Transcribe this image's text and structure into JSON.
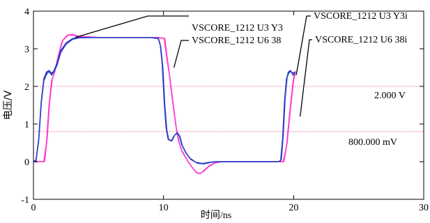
{
  "chart_data": {
    "type": "line",
    "xlabel": "时间/ns",
    "ylabel": "电压/V",
    "xlim": [
      0,
      30
    ],
    "ylim": [
      -1,
      4
    ],
    "x_ticks": [
      0,
      10,
      20,
      30
    ],
    "y_ticks": [
      -1,
      0,
      1,
      2,
      3,
      4
    ],
    "x_tick_labels": [
      "0",
      "10",
      "20",
      "30"
    ],
    "y_tick_labels": [
      "-1",
      "0",
      "1",
      "2",
      "3",
      "4"
    ],
    "grid": false,
    "reference_lines": [
      {
        "y": 2.0,
        "label": "2.000 V",
        "color": "#ff6fa3"
      },
      {
        "y": 0.8,
        "label": "800.000 mV",
        "color": "#ff6fa3"
      }
    ],
    "series": [
      {
        "name": "VSCORE_1212 U3 Y3",
        "color": "#2233bb",
        "points": [
          [
            0,
            0
          ],
          [
            0.2,
            0.02
          ],
          [
            0.4,
            0.6
          ],
          [
            0.6,
            1.6
          ],
          [
            0.8,
            2.2
          ],
          [
            1.0,
            2.38
          ],
          [
            1.2,
            2.42
          ],
          [
            1.4,
            2.35
          ],
          [
            1.55,
            2.4
          ],
          [
            1.8,
            2.6
          ],
          [
            2.1,
            2.95
          ],
          [
            2.5,
            3.15
          ],
          [
            3.0,
            3.27
          ],
          [
            3.5,
            3.3
          ],
          [
            4.5,
            3.3
          ],
          [
            6,
            3.3
          ],
          [
            8,
            3.3
          ],
          [
            9.0,
            3.3
          ],
          [
            9.6,
            3.28
          ],
          [
            9.75,
            3.1
          ],
          [
            9.9,
            2.6
          ],
          [
            10.05,
            1.6
          ],
          [
            10.2,
            0.9
          ],
          [
            10.35,
            0.6
          ],
          [
            10.6,
            0.55
          ],
          [
            10.8,
            0.68
          ],
          [
            11.0,
            0.75
          ],
          [
            11.2,
            0.7
          ],
          [
            11.4,
            0.45
          ],
          [
            11.7,
            0.25
          ],
          [
            12.0,
            0.1
          ],
          [
            12.5,
            -0.02
          ],
          [
            13.0,
            -0.05
          ],
          [
            13.5,
            -0.02
          ],
          [
            14.0,
            0
          ],
          [
            15,
            0
          ],
          [
            17,
            0
          ],
          [
            18.8,
            0
          ],
          [
            19.0,
            0.02
          ],
          [
            19.15,
            0.6
          ],
          [
            19.3,
            1.6
          ],
          [
            19.45,
            2.2
          ],
          [
            19.6,
            2.38
          ],
          [
            19.75,
            2.42
          ],
          [
            19.9,
            2.35
          ],
          [
            20.1,
            2.38
          ]
        ]
      },
      {
        "name": "VSCORE_1212 U6 38",
        "color": "#ff1fd0",
        "points": [
          [
            0,
            0
          ],
          [
            0.3,
            0
          ],
          [
            0.8,
            0
          ],
          [
            1.0,
            0.5
          ],
          [
            1.2,
            1.5
          ],
          [
            1.4,
            2.15
          ],
          [
            1.6,
            2.35
          ],
          [
            1.9,
            2.8
          ],
          [
            2.2,
            3.2
          ],
          [
            2.6,
            3.36
          ],
          [
            3.0,
            3.38
          ],
          [
            3.5,
            3.33
          ],
          [
            5,
            3.3
          ],
          [
            8,
            3.3
          ],
          [
            9.5,
            3.3
          ],
          [
            10.05,
            3.28
          ],
          [
            10.2,
            2.9
          ],
          [
            10.45,
            2.3
          ],
          [
            10.7,
            1.6
          ],
          [
            10.95,
            0.95
          ],
          [
            11.15,
            0.55
          ],
          [
            11.4,
            0.3
          ],
          [
            11.8,
            0.05
          ],
          [
            12.2,
            -0.15
          ],
          [
            12.5,
            -0.28
          ],
          [
            12.8,
            -0.32
          ],
          [
            13.1,
            -0.25
          ],
          [
            13.5,
            -0.12
          ],
          [
            14.0,
            -0.03
          ],
          [
            14.5,
            0
          ],
          [
            16,
            0
          ],
          [
            18.5,
            0
          ],
          [
            19.2,
            0
          ],
          [
            19.45,
            0.4
          ],
          [
            19.7,
            1.3
          ],
          [
            19.95,
            2.1
          ],
          [
            20.1,
            2.4
          ]
        ]
      },
      {
        "name": "VSCORE_1212 U3 Y3i",
        "color": "#3344cc",
        "points": [
          [
            0,
            0
          ],
          [
            0.2,
            0.05
          ],
          [
            0.4,
            0.55
          ],
          [
            0.6,
            1.55
          ],
          [
            0.8,
            2.15
          ],
          [
            1.0,
            2.32
          ],
          [
            1.2,
            2.4
          ],
          [
            1.4,
            2.3
          ],
          [
            1.55,
            2.38
          ],
          [
            1.8,
            2.55
          ],
          [
            2.1,
            2.9
          ],
          [
            2.5,
            3.12
          ],
          [
            3.0,
            3.25
          ],
          [
            3.5,
            3.29
          ],
          [
            4.5,
            3.3
          ],
          [
            6,
            3.3
          ],
          [
            8,
            3.3
          ],
          [
            9.0,
            3.3
          ],
          [
            9.6,
            3.27
          ],
          [
            9.78,
            3.05
          ],
          [
            9.95,
            2.5
          ],
          [
            10.1,
            1.5
          ],
          [
            10.25,
            0.85
          ],
          [
            10.4,
            0.58
          ],
          [
            10.65,
            0.56
          ],
          [
            10.85,
            0.7
          ],
          [
            11.05,
            0.77
          ],
          [
            11.25,
            0.68
          ],
          [
            11.45,
            0.42
          ],
          [
            11.75,
            0.22
          ],
          [
            12.1,
            0.06
          ],
          [
            12.6,
            -0.04
          ],
          [
            13.1,
            -0.06
          ],
          [
            13.6,
            -0.02
          ],
          [
            14.2,
            0
          ],
          [
            15,
            0
          ],
          [
            17,
            0
          ],
          [
            18.85,
            0
          ],
          [
            19.05,
            0.05
          ],
          [
            19.2,
            0.7
          ],
          [
            19.35,
            1.7
          ],
          [
            19.5,
            2.25
          ],
          [
            19.65,
            2.37
          ],
          [
            19.8,
            2.4
          ],
          [
            19.95,
            2.3
          ],
          [
            20.1,
            2.35
          ]
        ]
      },
      {
        "name": "VSCORE_1212 U6 38i",
        "color": "#ff44cc",
        "points": [
          [
            0,
            0
          ],
          [
            0.3,
            0
          ],
          [
            0.85,
            0
          ],
          [
            1.05,
            0.6
          ],
          [
            1.25,
            1.6
          ],
          [
            1.45,
            2.2
          ],
          [
            1.65,
            2.4
          ],
          [
            1.95,
            2.85
          ],
          [
            2.25,
            3.22
          ],
          [
            2.65,
            3.36
          ],
          [
            3.05,
            3.36
          ],
          [
            3.6,
            3.32
          ],
          [
            5,
            3.3
          ],
          [
            8,
            3.3
          ],
          [
            9.6,
            3.3
          ],
          [
            10.1,
            3.27
          ],
          [
            10.25,
            2.85
          ],
          [
            10.5,
            2.2
          ],
          [
            10.75,
            1.5
          ],
          [
            11.0,
            0.85
          ],
          [
            11.2,
            0.5
          ],
          [
            11.45,
            0.25
          ],
          [
            11.85,
            0.02
          ],
          [
            12.25,
            -0.18
          ],
          [
            12.55,
            -0.3
          ],
          [
            12.85,
            -0.31
          ],
          [
            13.15,
            -0.22
          ],
          [
            13.55,
            -0.1
          ],
          [
            14.05,
            -0.02
          ],
          [
            14.6,
            0
          ],
          [
            16,
            0
          ],
          [
            18.5,
            0
          ],
          [
            19.25,
            0
          ],
          [
            19.5,
            0.5
          ],
          [
            19.75,
            1.4
          ],
          [
            20.0,
            2.15
          ],
          [
            20.15,
            2.4
          ]
        ]
      }
    ],
    "annotations": [
      {
        "text": "VSCORE_1212 U3 Y3",
        "target": [
          3.2,
          3.3
        ]
      },
      {
        "text": "VSCORE_1212 U6 38",
        "target": [
          10.8,
          2.5
        ]
      },
      {
        "text": "VSCORE_1212 U3 Y3i",
        "target": [
          20.2,
          2.3
        ]
      },
      {
        "text": "VSCORE_1212 U6 38i",
        "target": [
          20.5,
          1.2
        ]
      }
    ]
  }
}
